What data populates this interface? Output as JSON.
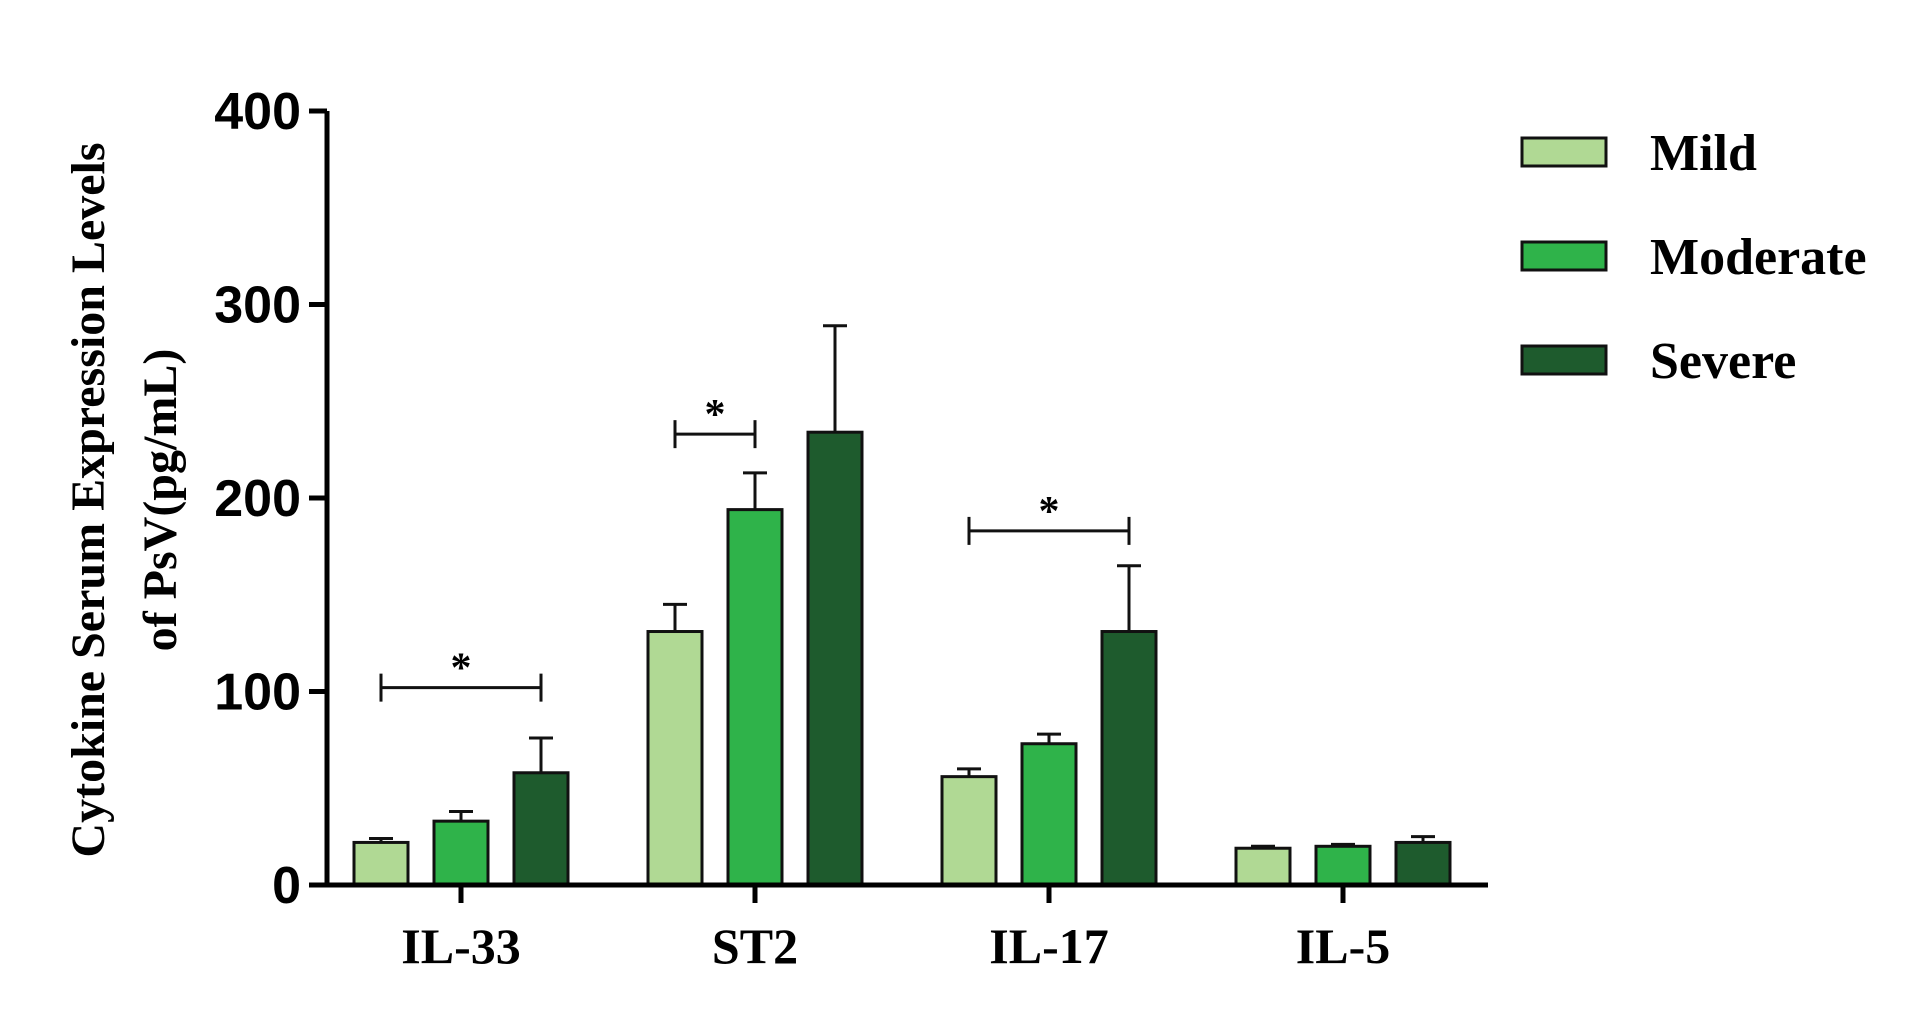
{
  "chart_data": {
    "type": "bar",
    "categories": [
      "IL-33",
      "ST2",
      "IL-17",
      "IL-5"
    ],
    "series": [
      {
        "name": "Mild",
        "color": "#b0d994",
        "values": [
          22,
          131,
          56,
          19
        ],
        "errors": [
          2,
          14,
          4,
          1
        ]
      },
      {
        "name": "Moderate",
        "color": "#2fb34a",
        "values": [
          33,
          194,
          73,
          20
        ],
        "errors": [
          5,
          19,
          5,
          1
        ]
      },
      {
        "name": "Severe",
        "color": "#1e5b2d",
        "values": [
          58,
          234,
          131,
          22
        ],
        "errors": [
          18,
          55,
          34,
          3
        ]
      }
    ],
    "ylabel": [
      "Cytokine Serum Expression Levels",
      "of PsV(pg/mL)"
    ],
    "xlabel": "",
    "ylim": [
      0,
      400
    ],
    "yticks": [
      "0",
      "100",
      "200",
      "300",
      "400"
    ],
    "ytick_values": [
      0,
      100,
      200,
      300,
      400
    ],
    "grid": false,
    "legend_position": "top-right",
    "significance": [
      {
        "category": "IL-33",
        "from_series": 0,
        "to_series": 2,
        "label": "*",
        "y": 102
      },
      {
        "category": "ST2",
        "from_series": 0,
        "to_series": 1,
        "label": "*",
        "y": 233
      },
      {
        "category": "IL-17",
        "from_series": 0,
        "to_series": 2,
        "label": "*",
        "y": 183
      }
    ]
  }
}
